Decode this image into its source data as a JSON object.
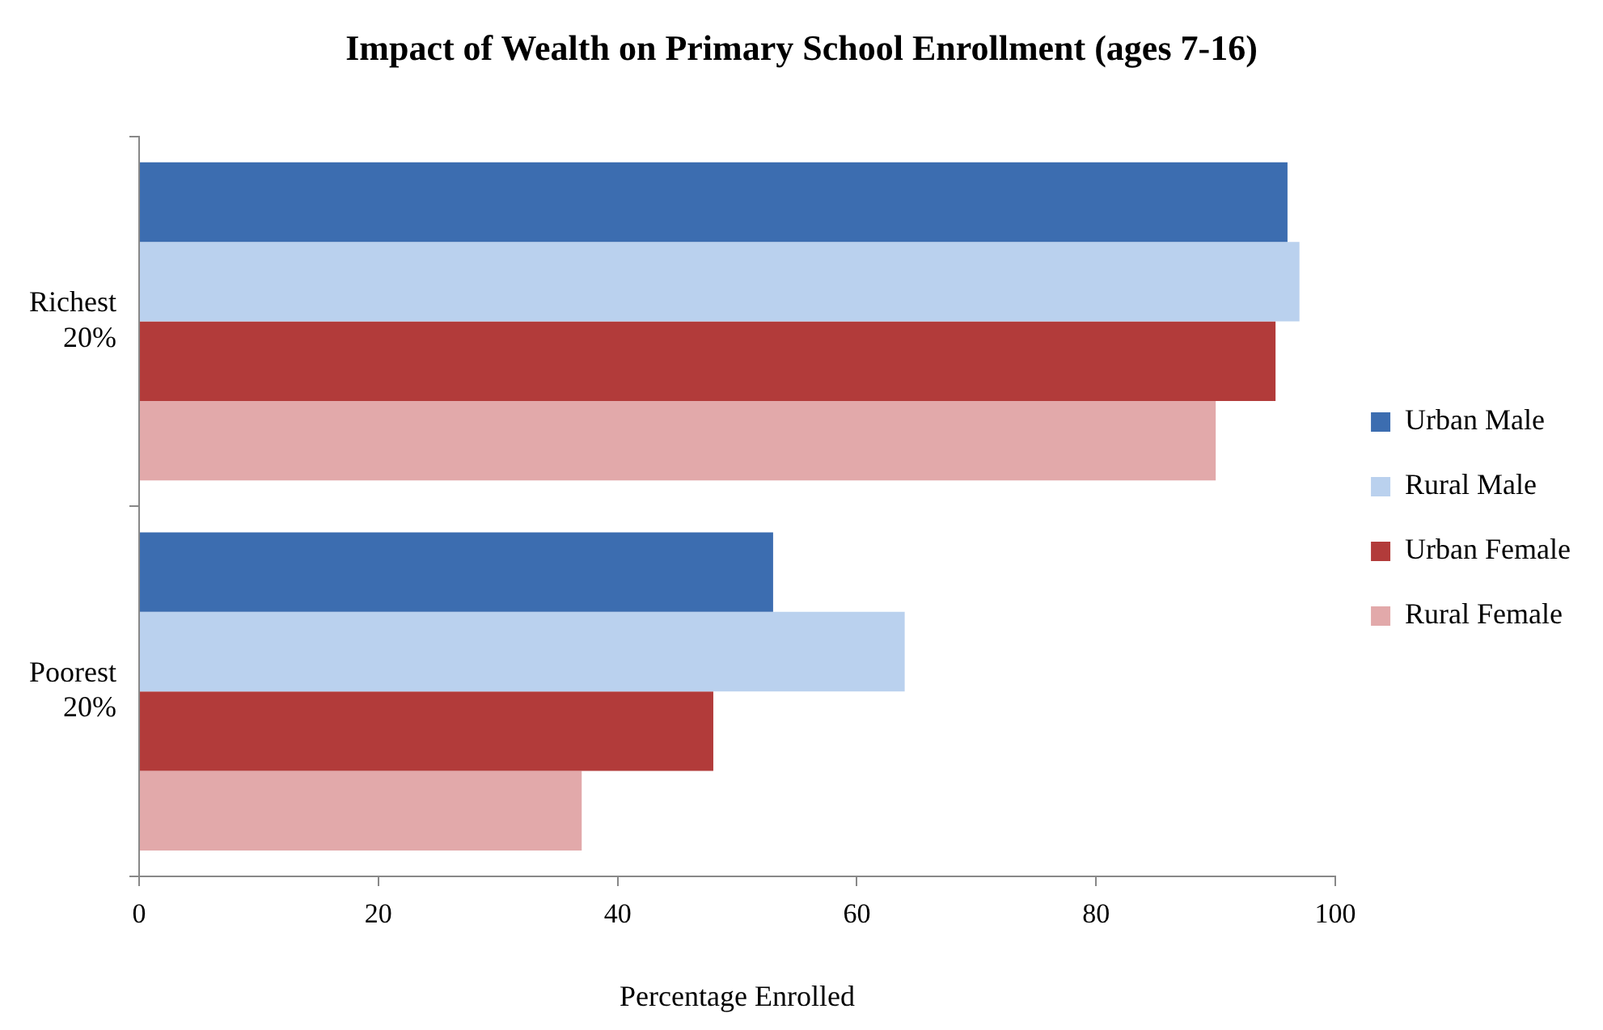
{
  "chart_data": {
    "type": "bar",
    "orientation": "horizontal",
    "title": "Impact of Wealth on Primary School Enrollment (ages 7-16)",
    "xlabel": "Percentage Enrolled",
    "categories": [
      "Richest 20%",
      "Poorest 20%"
    ],
    "series": [
      {
        "name": "Urban Male",
        "color": "#3c6db0",
        "values": [
          96,
          53
        ]
      },
      {
        "name": "Rural Male",
        "color": "#bad1ee",
        "values": [
          97,
          64
        ]
      },
      {
        "name": "Urban Female",
        "color": "#b23b3a",
        "values": [
          95,
          48
        ]
      },
      {
        "name": "Rural Female",
        "color": "#e2a9aa",
        "values": [
          90,
          37
        ]
      }
    ],
    "xlim": [
      0,
      100
    ],
    "xticks": [
      0,
      20,
      40,
      60,
      80,
      100
    ],
    "grid": false,
    "legend": "right"
  }
}
